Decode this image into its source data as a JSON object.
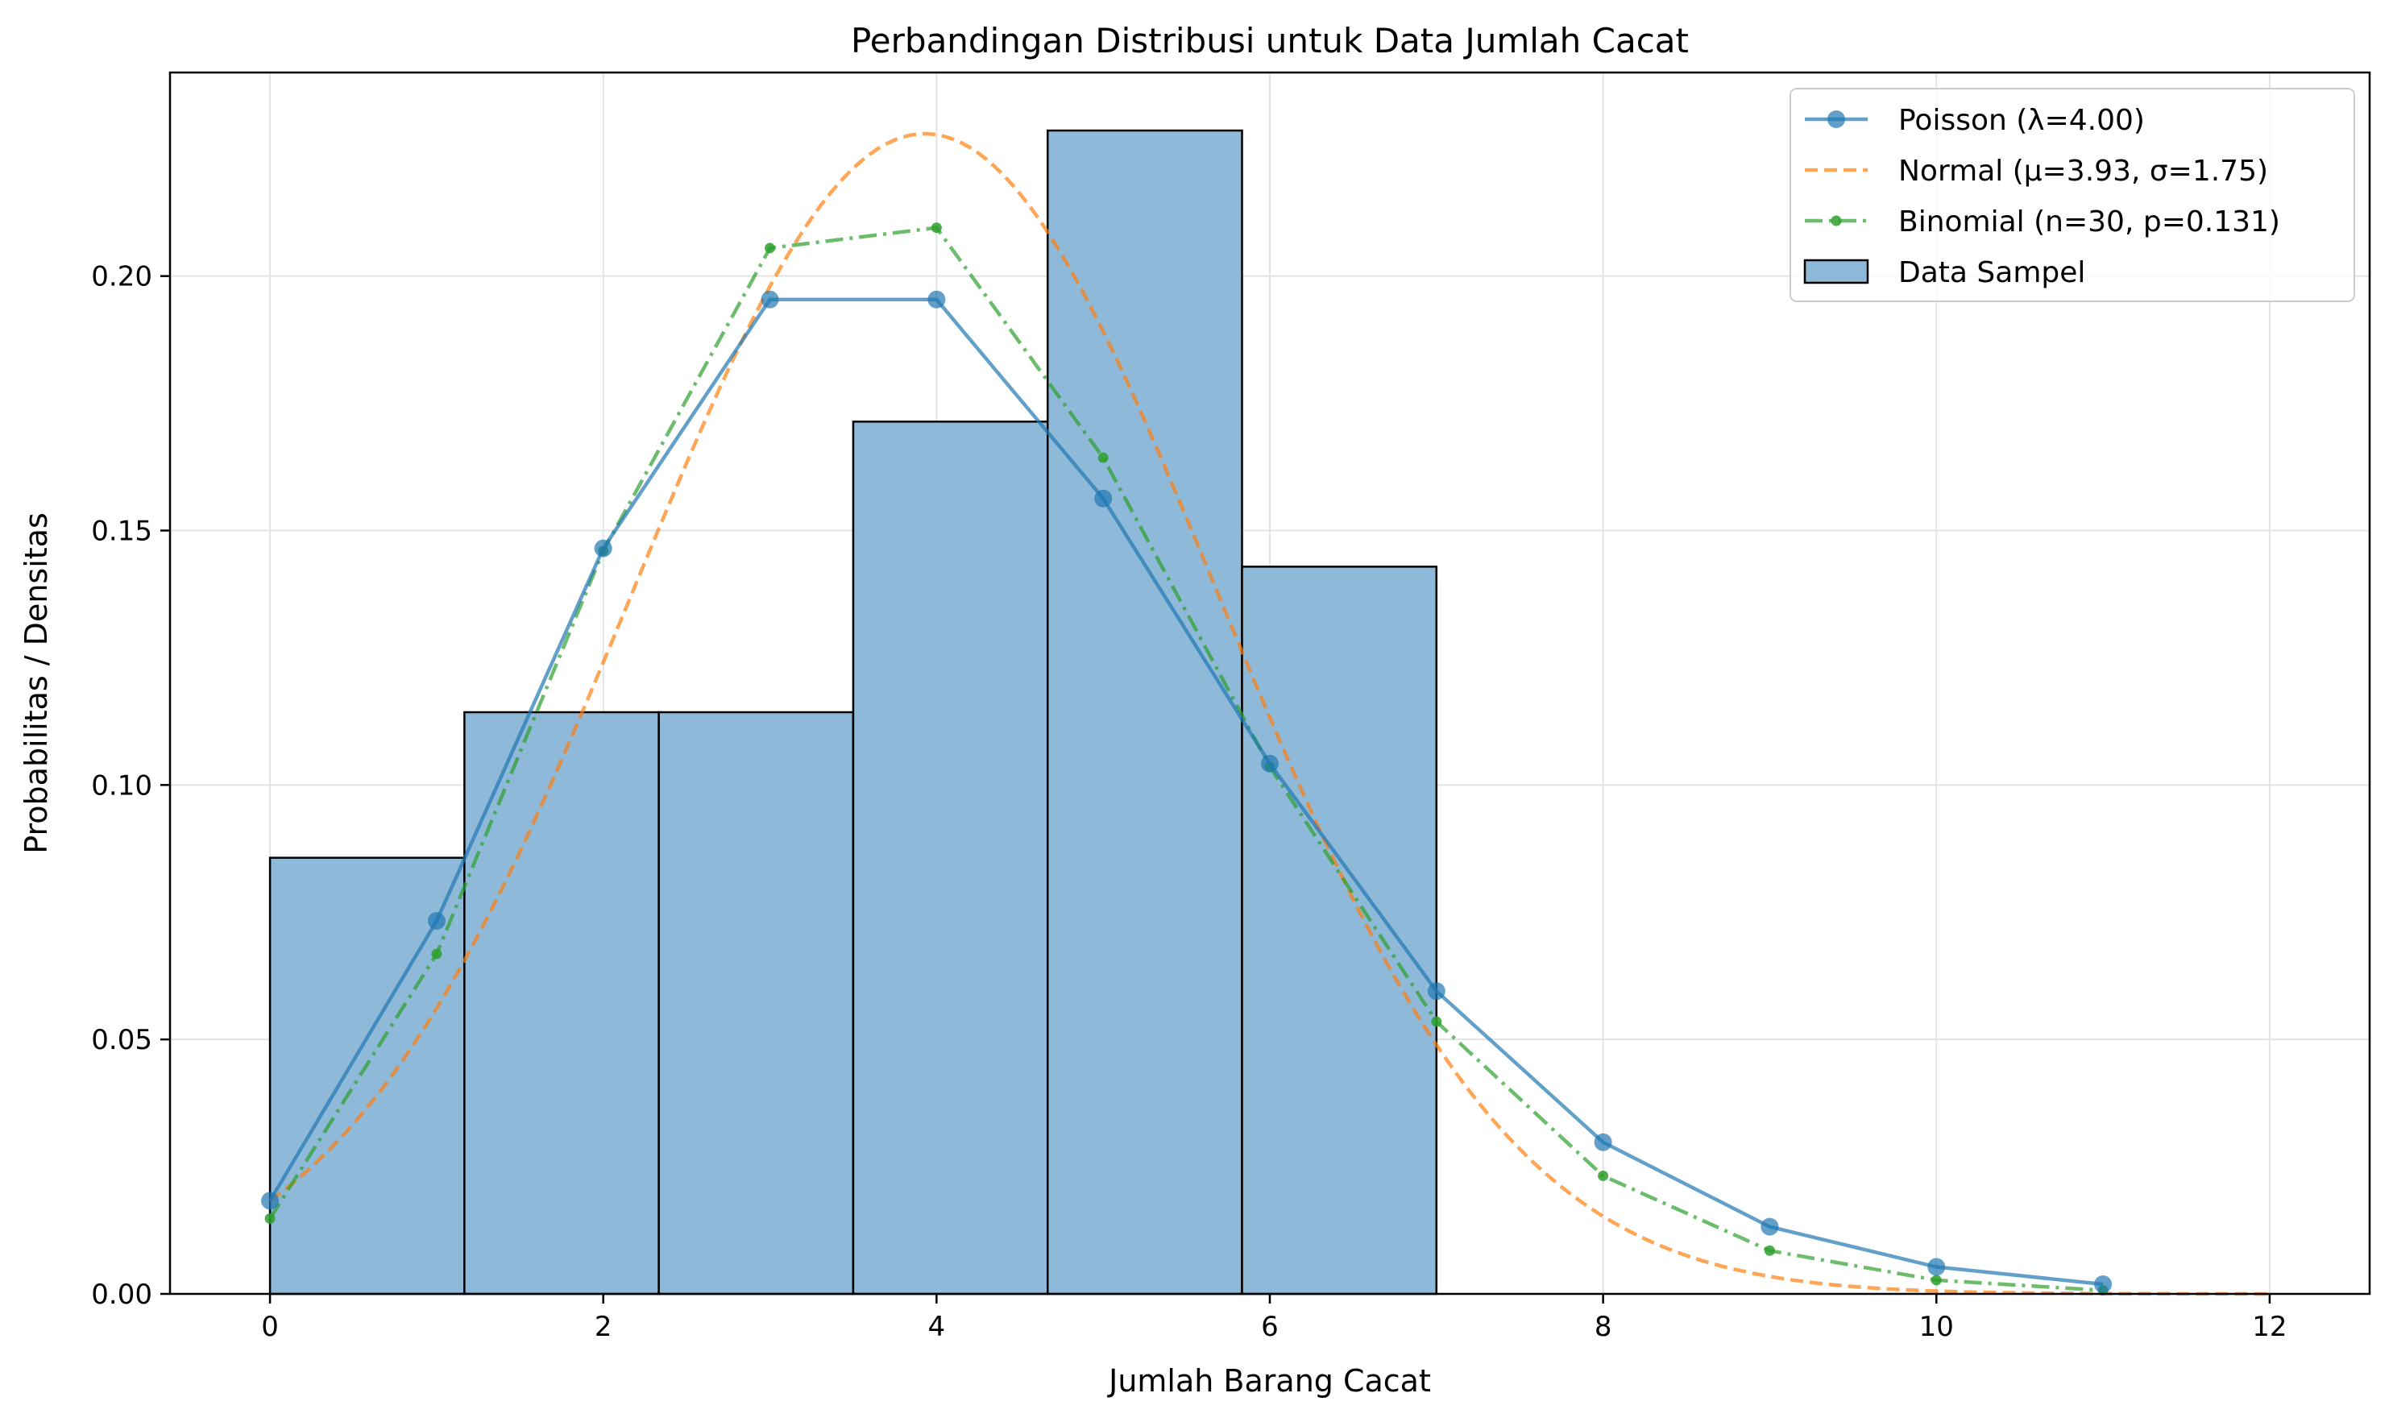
{
  "chart_data": {
    "type": "bar",
    "title": "Perbandingan Distribusi untuk Data Jumlah Cacat",
    "xlabel": "Jumlah Barang Cacat",
    "ylabel": "Probabilitas / Densitas",
    "xlim": [
      -0.6,
      12.6
    ],
    "ylim": [
      0,
      0.24
    ],
    "xticks": [
      0,
      2,
      4,
      6,
      8,
      10,
      12
    ],
    "yticks": [
      0.0,
      0.05,
      0.1,
      0.15,
      0.2
    ],
    "xtick_labels": [
      "0",
      "2",
      "4",
      "6",
      "8",
      "10",
      "12"
    ],
    "ytick_labels": [
      "0.00",
      "0.05",
      "0.10",
      "0.15",
      "0.20"
    ],
    "grid": true,
    "legend_position": "top-right",
    "histogram": {
      "name": "Data Sampel",
      "color": "#8fb9d9",
      "edge_color": "#000000",
      "bin_edges": [
        0,
        1.1667,
        2.3333,
        3.5,
        4.6667,
        5.8333,
        7.0
      ],
      "values": [
        0.0857,
        0.1143,
        0.1143,
        0.1714,
        0.2286,
        0.1429
      ]
    },
    "series": [
      {
        "name": "Poisson (λ=4.00)",
        "color": "#1f77b4",
        "style": "solid-circle",
        "x": [
          0,
          1,
          2,
          3,
          4,
          5,
          6,
          7,
          8,
          9,
          10,
          11
        ],
        "values": [
          0.0183,
          0.0733,
          0.1465,
          0.1954,
          0.1954,
          0.1563,
          0.1042,
          0.0595,
          0.0298,
          0.0132,
          0.0053,
          0.0019
        ]
      },
      {
        "name": "Normal (μ=3.93, σ=1.75)",
        "color": "#ff7f0e",
        "style": "dashed",
        "mu": 3.93,
        "sigma": 1.75,
        "x_range": [
          0,
          12
        ]
      },
      {
        "name": "Binomial (n=30, p=0.131)",
        "color": "#2ca02c",
        "style": "dashdot-dot",
        "x": [
          0,
          1,
          2,
          3,
          4,
          5,
          6,
          7,
          8,
          9,
          10,
          11
        ],
        "values": [
          0.0148,
          0.0668,
          0.146,
          0.2055,
          0.2095,
          0.1643,
          0.1036,
          0.0535,
          0.0232,
          0.0085,
          0.0027,
          0.0007
        ]
      }
    ]
  }
}
